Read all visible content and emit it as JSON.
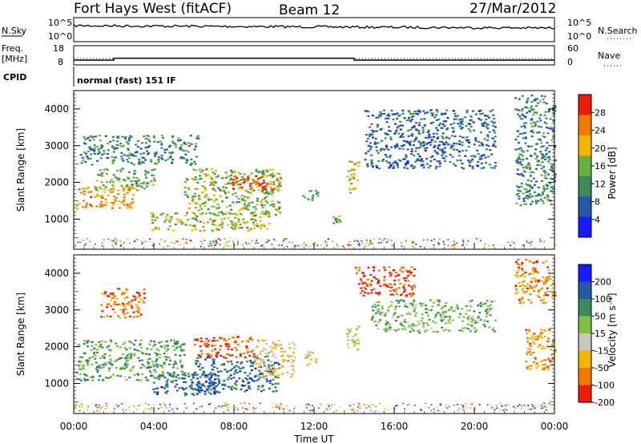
{
  "header": {
    "station": "Fort Hays West (fitACF)",
    "beam": "Beam 12",
    "date": "27/Mar/2012"
  },
  "summary": {
    "nsky_label": "N.Sky",
    "nsearch_label": "N.Search",
    "noise_ticks_left": [
      "10^5",
      "10^0"
    ],
    "noise_ticks_right": [
      "10^5",
      "10^0"
    ],
    "freq_label_line1": "Freq.",
    "freq_label_line2": "[MHz]",
    "freq_ticks": [
      "18",
      "8"
    ],
    "nave_label": "Nave",
    "nave_ticks": [
      "60",
      "0"
    ],
    "cpid_label": "CPID",
    "cpid_value": "normal (fast) 151 IF",
    "freq_steps_hours": [
      0,
      2,
      14,
      24
    ],
    "freq_values_mhz": [
      10.5,
      11.5,
      10.5
    ]
  },
  "chart_data": [
    {
      "type": "heatmap",
      "name": "power",
      "ylabel": "Slant Range [km]",
      "xlabel": "Time UT",
      "xlim_hours": [
        0,
        24
      ],
      "x_tick_labels": [
        "00:00",
        "04:00",
        "08:00",
        "12:00",
        "16:00",
        "20:00",
        "00:00"
      ],
      "ylim_km": [
        180,
        4500
      ],
      "y_tick_labels": [
        "1000",
        "2000",
        "3000",
        "4000"
      ],
      "colorbar": {
        "label": "Power [dB]",
        "ticks": [
          "4",
          "8",
          "12",
          "16",
          "20",
          "24",
          "28"
        ],
        "colors": [
          "#1a1aff",
          "#2559a8",
          "#3d8a5a",
          "#6ab040",
          "#f5b400",
          "#f07a00",
          "#ee1c0c"
        ]
      },
      "regions": [
        {
          "t": [
            0.1,
            3.0
          ],
          "r": [
            1300,
            1900
          ],
          "level": 0.75
        },
        {
          "t": [
            1.0,
            4.0
          ],
          "r": [
            1800,
            2400
          ],
          "level": 0.45
        },
        {
          "t": [
            3.8,
            9.8
          ],
          "r": [
            700,
            1200
          ],
          "level": 0.55
        },
        {
          "t": [
            5.5,
            10.3
          ],
          "r": [
            1100,
            2400
          ],
          "level": 0.5
        },
        {
          "t": [
            7.8,
            10.3
          ],
          "r": [
            1800,
            2200
          ],
          "level": 0.9
        },
        {
          "t": [
            0.3,
            6.2
          ],
          "r": [
            2500,
            3300
          ],
          "level": 0.3
        },
        {
          "t": [
            11.3,
            12.2
          ],
          "r": [
            1500,
            1800
          ],
          "level": 0.4
        },
        {
          "t": [
            13.6,
            14.2
          ],
          "r": [
            1700,
            2600
          ],
          "level": 0.6
        },
        {
          "t": [
            12.9,
            13.3
          ],
          "r": [
            900,
            1100
          ],
          "level": 0.45
        },
        {
          "t": [
            14.5,
            21.0
          ],
          "r": [
            2400,
            4000
          ],
          "level": 0.2
        },
        {
          "t": [
            22.0,
            24.0
          ],
          "r": [
            1400,
            4400
          ],
          "level": 0.3
        }
      ]
    },
    {
      "type": "heatmap",
      "name": "velocity",
      "ylabel": "Slant Range [km]",
      "xlabel": "Time UT",
      "xlim_hours": [
        0,
        24
      ],
      "x_tick_labels": [
        "00:00",
        "04:00",
        "08:00",
        "12:00",
        "16:00",
        "20:00",
        "00:00"
      ],
      "ylim_km": [
        180,
        4500
      ],
      "y_tick_labels": [
        "1000",
        "2000",
        "3000",
        "4000"
      ],
      "colorbar": {
        "label": "Velocity [m s⁻¹]",
        "ticks": [
          "200",
          "100",
          "50",
          "15",
          "-15",
          "-50",
          "-100",
          "-200"
        ],
        "colors": [
          "#1a1aff",
          "#2559a8",
          "#3d8a5a",
          "#7ec040",
          "#c8c8c0",
          "#f5b400",
          "#f07a00",
          "#ee1c0c"
        ]
      },
      "regions": [
        {
          "t": [
            0.1,
            5.5
          ],
          "r": [
            1100,
            2200
          ],
          "level": 0.35
        },
        {
          "t": [
            1.3,
            3.5
          ],
          "r": [
            2800,
            3600
          ],
          "level": 0.85
        },
        {
          "t": [
            3.8,
            7.5
          ],
          "r": [
            700,
            1300
          ],
          "level": 0.2
        },
        {
          "t": [
            6.0,
            10.2
          ],
          "r": [
            800,
            1800
          ],
          "level": 0.2
        },
        {
          "t": [
            6.0,
            9.0
          ],
          "r": [
            1700,
            2300
          ],
          "level": 0.9
        },
        {
          "t": [
            9.0,
            11.0
          ],
          "r": [
            1200,
            2200
          ],
          "level": 0.65
        },
        {
          "t": [
            11.5,
            12.2
          ],
          "r": [
            1500,
            1900
          ],
          "level": 0.6
        },
        {
          "t": [
            13.6,
            14.2
          ],
          "r": [
            1800,
            2600
          ],
          "level": 0.55
        },
        {
          "t": [
            14.0,
            17.0
          ],
          "r": [
            3400,
            4200
          ],
          "level": 0.95
        },
        {
          "t": [
            14.8,
            21.0
          ],
          "r": [
            2400,
            3300
          ],
          "level": 0.4
        },
        {
          "t": [
            22.0,
            24.0
          ],
          "r": [
            3200,
            4400
          ],
          "level": 0.85
        },
        {
          "t": [
            22.5,
            24.0
          ],
          "r": [
            1400,
            2500
          ],
          "level": 0.85
        }
      ]
    }
  ]
}
